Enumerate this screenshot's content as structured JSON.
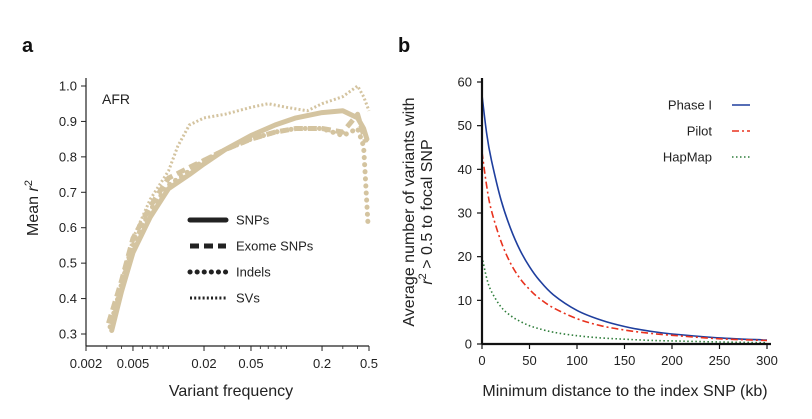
{
  "panels": {
    "a_letter": "a",
    "b_letter": "b"
  },
  "chart_data": [
    {
      "type": "line",
      "panel": "a",
      "annotation": "AFR",
      "xlabel": "Variant frequency",
      "ylabel": "Mean r²",
      "ylabel_main": "Mean ",
      "ylabel_sup": "2",
      "xscale": "log",
      "xlim": [
        0.002,
        0.5
      ],
      "ylim": [
        0.3,
        1.0
      ],
      "x_ticks": [
        0.002,
        0.005,
        0.02,
        0.05,
        0.2,
        0.5
      ],
      "x_tick_labels": [
        "0.002",
        "0.005",
        "0.02",
        "0.05",
        "0.2",
        "0.5"
      ],
      "y_ticks": [
        0.3,
        0.4,
        0.5,
        0.6,
        0.7,
        0.8,
        0.9,
        1.0
      ],
      "y_tick_labels": [
        "0.3",
        "0.4",
        "0.5",
        "0.6",
        "0.7",
        "0.8",
        "0.9",
        "1.0"
      ],
      "color": "#d4c4a0",
      "series": [
        {
          "name": "SNPs",
          "style": "solid",
          "x": [
            0.0033,
            0.004,
            0.005,
            0.007,
            0.01,
            0.015,
            0.02,
            0.03,
            0.05,
            0.08,
            0.12,
            0.2,
            0.3,
            0.4,
            0.45,
            0.48
          ],
          "y": [
            0.31,
            0.42,
            0.53,
            0.63,
            0.71,
            0.75,
            0.78,
            0.82,
            0.86,
            0.89,
            0.91,
            0.925,
            0.93,
            0.91,
            0.88,
            0.85
          ]
        },
        {
          "name": "Exome SNPs",
          "style": "dashed",
          "x": [
            0.0031,
            0.004,
            0.005,
            0.007,
            0.01,
            0.015,
            0.02,
            0.03,
            0.05,
            0.08,
            0.12,
            0.2,
            0.3,
            0.4,
            0.47
          ],
          "y": [
            0.33,
            0.45,
            0.57,
            0.66,
            0.74,
            0.77,
            0.79,
            0.82,
            0.85,
            0.87,
            0.88,
            0.88,
            0.87,
            0.92,
            0.84
          ]
        },
        {
          "name": "Indels",
          "style": "dotted",
          "x": [
            0.0032,
            0.004,
            0.005,
            0.007,
            0.01,
            0.015,
            0.02,
            0.03,
            0.05,
            0.08,
            0.12,
            0.2,
            0.3,
            0.4,
            0.45,
            0.47,
            0.49
          ],
          "y": [
            0.32,
            0.44,
            0.55,
            0.65,
            0.72,
            0.76,
            0.79,
            0.82,
            0.85,
            0.87,
            0.88,
            0.88,
            0.86,
            0.88,
            0.83,
            0.72,
            0.61
          ]
        },
        {
          "name": "SVs",
          "style": "densely-dotted",
          "x": [
            0.0033,
            0.004,
            0.005,
            0.007,
            0.01,
            0.012,
            0.015,
            0.02,
            0.03,
            0.05,
            0.07,
            0.1,
            0.15,
            0.2,
            0.3,
            0.4,
            0.45,
            0.5
          ],
          "y": [
            0.33,
            0.45,
            0.57,
            0.68,
            0.76,
            0.83,
            0.89,
            0.91,
            0.92,
            0.94,
            0.95,
            0.94,
            0.93,
            0.95,
            0.97,
            1.0,
            0.97,
            0.93
          ]
        }
      ],
      "legend_position": "center-right"
    },
    {
      "type": "line",
      "panel": "b",
      "xlabel": "Minimum distance to the index SNP (kb)",
      "ylabel_line1": "Average number of variants with",
      "ylabel_line2_tail": " > 0.5 to focal SNP",
      "ylabel_r": "r",
      "ylabel_sup": "2",
      "xlim": [
        0,
        300
      ],
      "ylim": [
        0,
        60
      ],
      "x_ticks": [
        0,
        50,
        100,
        150,
        200,
        250,
        300
      ],
      "x_tick_labels": [
        "0",
        "50",
        "100",
        "150",
        "200",
        "250",
        "300"
      ],
      "y_ticks": [
        0,
        10,
        20,
        30,
        40,
        50,
        60
      ],
      "y_tick_labels": [
        "0",
        "10",
        "20",
        "30",
        "40",
        "50",
        "60"
      ],
      "series": [
        {
          "name": "Phase I",
          "style": "solid",
          "color": "#1f3f9e",
          "x": [
            0,
            5,
            10,
            20,
            30,
            40,
            50,
            60,
            75,
            100,
            125,
            150,
            175,
            200,
            250,
            300
          ],
          "y": [
            57,
            48,
            42,
            33,
            26.5,
            21.5,
            17.7,
            14.7,
            11.3,
            7.7,
            5.5,
            4.0,
            3.0,
            2.3,
            1.4,
            0.9
          ]
        },
        {
          "name": "Pilot",
          "style": "dashdot",
          "color": "#e8321e",
          "x": [
            0,
            5,
            10,
            20,
            30,
            40,
            50,
            60,
            75,
            100,
            125,
            150,
            175,
            200,
            250,
            300
          ],
          "y": [
            44,
            36,
            30.5,
            23.5,
            18.5,
            15,
            12.5,
            10.5,
            8.3,
            5.8,
            4.2,
            3.2,
            2.5,
            2.0,
            1.2,
            0.8
          ]
        },
        {
          "name": "HapMap",
          "style": "dotted",
          "color": "#2e7d3a",
          "x": [
            0,
            5,
            10,
            20,
            30,
            40,
            50,
            60,
            75,
            100,
            125,
            150,
            175,
            200,
            250,
            300
          ],
          "y": [
            20,
            15,
            12,
            8.5,
            6.5,
            5.2,
            4.2,
            3.5,
            2.7,
            1.9,
            1.4,
            1.1,
            0.85,
            0.7,
            0.45,
            0.3
          ]
        }
      ],
      "legend_position": "top-right"
    }
  ]
}
